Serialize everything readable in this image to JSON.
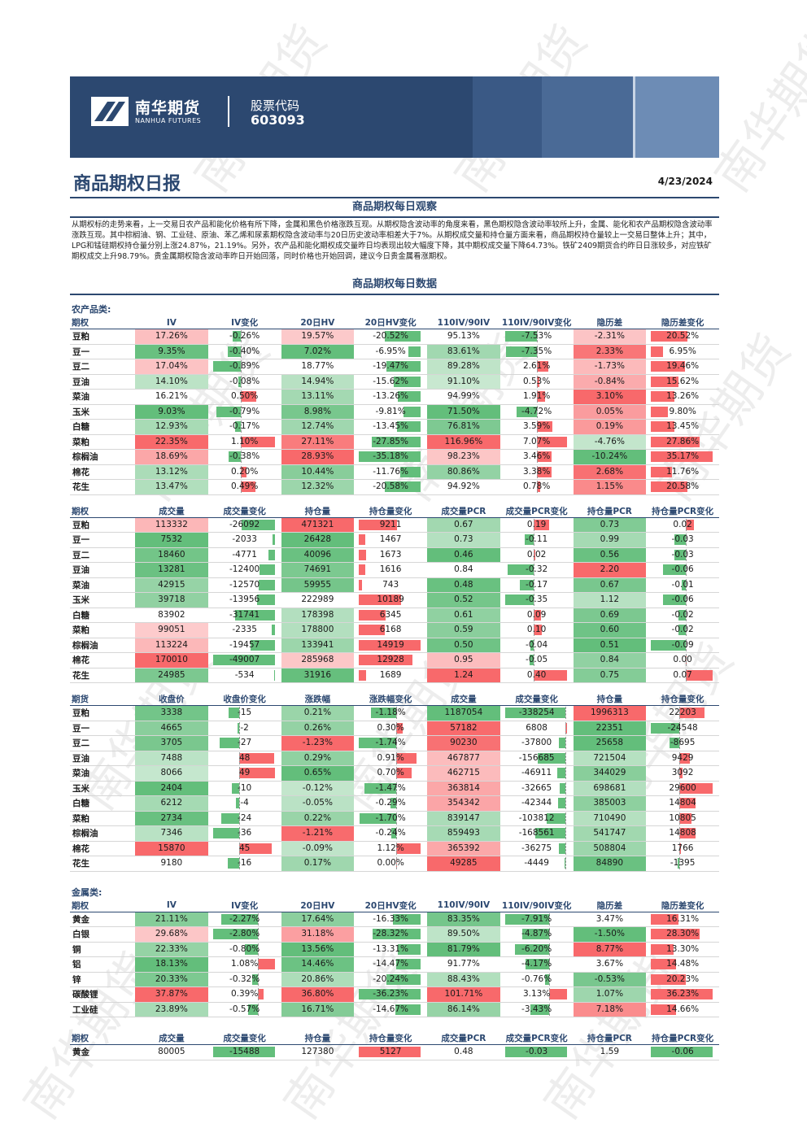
{
  "header": {
    "company_cn": "南华期货",
    "company_en": "NANHUA FUTURES",
    "stock_label": "股票代码",
    "stock_code": "603093",
    "report_title": "商品期权日报",
    "date": "4/23/2024",
    "watermark": "南华期货"
  },
  "observation": {
    "heading": "商品期权每日观察",
    "text": "从期权标的走势来看，上一交易日农产品和能化价格有所下降，金属和黑色价格涨跌互现。从期权隐含波动率的角度来看，黑色期权隐含波动率较所上升，金属、能化和农产品期权隐含波动率涨跌互现。其中棕榈油、钢、工业硅、原油、苯乙烯和尿素期权隐含波动率与20日历史波动率相差大于7%。从期权成交量和持仓量方面来看，商品期权持仓量较上一交易日整体上升；其中，LPG和锰硅期权持仓量分别上涨24.87%，21.19%。另外，农产品和能化期权成交量昨日均表现出较大幅度下降，其中期权成交量下降64.73%。铁矿2409期货合约昨日日涨较多，对应铁矿期权成交上升98.79%。贵金属期权隐含波动率昨日开始回落，同时价格也开始回调，建议今日贵金属看涨期权。"
  },
  "data_heading": "商品期权每日数据",
  "agri_label": "农产品类:",
  "metal_label": "金属类:",
  "iv_headers": [
    "期权",
    "IV",
    "IV变化",
    "20日HV",
    "20日HV变化",
    "110IV/90IV",
    "110IV/90IV变化",
    "隐历差",
    "隐历差变化"
  ],
  "vol_headers": [
    "期权",
    "成交量",
    "成交量变化",
    "持仓量",
    "持仓量变化",
    "成交量PCR",
    "成交量PCR变化",
    "持仓量PCR",
    "持仓量PCR变化"
  ],
  "fut_headers": [
    "期货",
    "收盘价",
    "收盘价变化",
    "涨跌幅",
    "涨跌幅变化",
    "成交量",
    "成交量变化",
    "持仓量",
    "持仓量变化"
  ],
  "agri_iv": [
    {
      "name": "豆粕",
      "iv": "17.26%",
      "iv_chg": "-0.26%",
      "hv": "19.57%",
      "hv_chg": "-20.52%",
      "ratio": "95.13%",
      "ratio_chg": "-7.53%",
      "spread": "-2.31%",
      "spread_chg": "20.52%"
    },
    {
      "name": "豆一",
      "iv": "9.35%",
      "iv_chg": "-0.40%",
      "hv": "7.02%",
      "hv_chg": "-6.95%",
      "ratio": "83.61%",
      "ratio_chg": "-7.35%",
      "spread": "2.33%",
      "spread_chg": "6.95%"
    },
    {
      "name": "豆二",
      "iv": "17.04%",
      "iv_chg": "-0.89%",
      "hv": "18.77%",
      "hv_chg": "-19.47%",
      "ratio": "89.28%",
      "ratio_chg": "2.61%",
      "spread": "-1.73%",
      "spread_chg": "19.46%"
    },
    {
      "name": "豆油",
      "iv": "14.10%",
      "iv_chg": "-0.08%",
      "hv": "14.94%",
      "hv_chg": "-15.62%",
      "ratio": "91.10%",
      "ratio_chg": "0.53%",
      "spread": "-0.84%",
      "spread_chg": "15.62%"
    },
    {
      "name": "菜油",
      "iv": "16.21%",
      "iv_chg": "0.50%",
      "hv": "13.11%",
      "hv_chg": "-13.26%",
      "ratio": "94.99%",
      "ratio_chg": "1.91%",
      "spread": "3.10%",
      "spread_chg": "13.26%"
    },
    {
      "name": "玉米",
      "iv": "9.03%",
      "iv_chg": "-0.79%",
      "hv": "8.98%",
      "hv_chg": "-9.81%",
      "ratio": "71.50%",
      "ratio_chg": "-4.72%",
      "spread": "0.05%",
      "spread_chg": "9.80%"
    },
    {
      "name": "白糖",
      "iv": "12.93%",
      "iv_chg": "-0.17%",
      "hv": "12.74%",
      "hv_chg": "-13.45%",
      "ratio": "76.81%",
      "ratio_chg": "3.59%",
      "spread": "0.19%",
      "spread_chg": "13.45%"
    },
    {
      "name": "菜粕",
      "iv": "22.35%",
      "iv_chg": "1.10%",
      "hv": "27.11%",
      "hv_chg": "-27.85%",
      "ratio": "116.96%",
      "ratio_chg": "7.07%",
      "spread": "-4.76%",
      "spread_chg": "27.86%"
    },
    {
      "name": "棕榈油",
      "iv": "18.69%",
      "iv_chg": "-0.38%",
      "hv": "28.93%",
      "hv_chg": "-35.18%",
      "ratio": "98.23%",
      "ratio_chg": "3.46%",
      "spread": "-10.24%",
      "spread_chg": "35.17%"
    },
    {
      "name": "棉花",
      "iv": "13.12%",
      "iv_chg": "0.20%",
      "hv": "10.44%",
      "hv_chg": "-11.76%",
      "ratio": "80.86%",
      "ratio_chg": "3.38%",
      "spread": "2.68%",
      "spread_chg": "11.76%"
    },
    {
      "name": "花生",
      "iv": "13.47%",
      "iv_chg": "0.49%",
      "hv": "12.32%",
      "hv_chg": "-20.58%",
      "ratio": "94.92%",
      "ratio_chg": "0.78%",
      "spread": "1.15%",
      "spread_chg": "20.58%"
    }
  ],
  "agri_vol": [
    {
      "name": "豆粕",
      "vol": "113332",
      "vol_chg": "-26092",
      "oi": "471321",
      "oi_chg": "9211",
      "vpcr": "0.67",
      "vpcr_chg": "0.19",
      "opcr": "0.73",
      "opcr_chg": "0.02"
    },
    {
      "name": "豆一",
      "vol": "7532",
      "vol_chg": "-2033",
      "oi": "26428",
      "oi_chg": "1467",
      "vpcr": "0.73",
      "vpcr_chg": "-0.11",
      "opcr": "0.99",
      "opcr_chg": "-0.03"
    },
    {
      "name": "豆二",
      "vol": "18460",
      "vol_chg": "-4771",
      "oi": "40096",
      "oi_chg": "1673",
      "vpcr": "0.46",
      "vpcr_chg": "0.02",
      "opcr": "0.56",
      "opcr_chg": "-0.03"
    },
    {
      "name": "豆油",
      "vol": "13281",
      "vol_chg": "-12400",
      "oi": "74691",
      "oi_chg": "1616",
      "vpcr": "0.84",
      "vpcr_chg": "-0.32",
      "opcr": "2.20",
      "opcr_chg": "-0.06"
    },
    {
      "name": "菜油",
      "vol": "42915",
      "vol_chg": "-12570",
      "oi": "59955",
      "oi_chg": "743",
      "vpcr": "0.48",
      "vpcr_chg": "-0.17",
      "opcr": "0.67",
      "opcr_chg": "-0.01"
    },
    {
      "name": "玉米",
      "vol": "39718",
      "vol_chg": "-13956",
      "oi": "222989",
      "oi_chg": "10189",
      "vpcr": "0.52",
      "vpcr_chg": "-0.35",
      "opcr": "1.12",
      "opcr_chg": "-0.06"
    },
    {
      "name": "白糖",
      "vol": "83902",
      "vol_chg": "-31741",
      "oi": "178398",
      "oi_chg": "6345",
      "vpcr": "0.61",
      "vpcr_chg": "0.09",
      "opcr": "0.69",
      "opcr_chg": "-0.02"
    },
    {
      "name": "菜粕",
      "vol": "99051",
      "vol_chg": "-2335",
      "oi": "178800",
      "oi_chg": "6168",
      "vpcr": "0.59",
      "vpcr_chg": "0.10",
      "opcr": "0.60",
      "opcr_chg": "-0.02"
    },
    {
      "name": "棕榈油",
      "vol": "113224",
      "vol_chg": "-19457",
      "oi": "133941",
      "oi_chg": "14919",
      "vpcr": "0.50",
      "vpcr_chg": "-0.04",
      "opcr": "0.51",
      "opcr_chg": "-0.09"
    },
    {
      "name": "棉花",
      "vol": "170010",
      "vol_chg": "-49007",
      "oi": "285968",
      "oi_chg": "12928",
      "vpcr": "0.95",
      "vpcr_chg": "-0.05",
      "opcr": "0.84",
      "opcr_chg": "0.00"
    },
    {
      "name": "花生",
      "vol": "24985",
      "vol_chg": "-534",
      "oi": "31916",
      "oi_chg": "1689",
      "vpcr": "1.24",
      "vpcr_chg": "0.40",
      "opcr": "0.75",
      "opcr_chg": "0.07"
    }
  ],
  "agri_fut": [
    {
      "name": "豆粕",
      "close": "3338",
      "close_chg": "-15",
      "pct": "0.21%",
      "pct_chg": "-1.18%",
      "vol": "1187054",
      "vol_chg": "-338254",
      "oi": "1996313",
      "oi_chg": "22203"
    },
    {
      "name": "豆一",
      "close": "4665",
      "close_chg": "-2",
      "pct": "0.26%",
      "pct_chg": "0.30%",
      "vol": "57182",
      "vol_chg": "6808",
      "oi": "22351",
      "oi_chg": "-24548"
    },
    {
      "name": "豆二",
      "close": "3705",
      "close_chg": "-27",
      "pct": "-1.23%",
      "pct_chg": "-1.74%",
      "vol": "90230",
      "vol_chg": "-37800",
      "oi": "25658",
      "oi_chg": "-8695"
    },
    {
      "name": "豆油",
      "close": "7488",
      "close_chg": "48",
      "pct": "0.29%",
      "pct_chg": "0.91%",
      "vol": "467877",
      "vol_chg": "-156685",
      "oi": "721504",
      "oi_chg": "9429"
    },
    {
      "name": "菜油",
      "close": "8066",
      "close_chg": "49",
      "pct": "0.65%",
      "pct_chg": "0.70%",
      "vol": "462715",
      "vol_chg": "-46911",
      "oi": "344029",
      "oi_chg": "3092"
    },
    {
      "name": "玉米",
      "close": "2404",
      "close_chg": "-10",
      "pct": "-0.12%",
      "pct_chg": "-1.47%",
      "vol": "363814",
      "vol_chg": "-32665",
      "oi": "698681",
      "oi_chg": "29600"
    },
    {
      "name": "白糖",
      "close": "6212",
      "close_chg": "-4",
      "pct": "-0.05%",
      "pct_chg": "-0.29%",
      "vol": "354342",
      "vol_chg": "-42344",
      "oi": "385003",
      "oi_chg": "14804"
    },
    {
      "name": "菜粕",
      "close": "2734",
      "close_chg": "-24",
      "pct": "0.22%",
      "pct_chg": "-1.70%",
      "vol": "839147",
      "vol_chg": "-103812",
      "oi": "710490",
      "oi_chg": "10805"
    },
    {
      "name": "棕榈油",
      "close": "7346",
      "close_chg": "-36",
      "pct": "-1.21%",
      "pct_chg": "-0.24%",
      "vol": "859493",
      "vol_chg": "-168561",
      "oi": "541747",
      "oi_chg": "14808"
    },
    {
      "name": "棉花",
      "close": "15870",
      "close_chg": "45",
      "pct": "-0.09%",
      "pct_chg": "1.12%",
      "vol": "365392",
      "vol_chg": "-36275",
      "oi": "508804",
      "oi_chg": "1766"
    },
    {
      "name": "花生",
      "close": "9180",
      "close_chg": "-16",
      "pct": "0.17%",
      "pct_chg": "0.00%",
      "vol": "49285",
      "vol_chg": "-4449",
      "oi": "84890",
      "oi_chg": "-1395"
    }
  ],
  "metal_iv": [
    {
      "name": "黄金",
      "iv": "21.11%",
      "iv_chg": "-2.27%",
      "hv": "17.64%",
      "hv_chg": "-16.33%",
      "ratio": "83.35%",
      "ratio_chg": "-7.91%",
      "spread": "3.47%",
      "spread_chg": "16.31%"
    },
    {
      "name": "白银",
      "iv": "29.68%",
      "iv_chg": "-2.80%",
      "hv": "31.18%",
      "hv_chg": "-28.32%",
      "ratio": "89.50%",
      "ratio_chg": "-4.87%",
      "spread": "-1.50%",
      "spread_chg": "28.30%"
    },
    {
      "name": "铜",
      "iv": "22.33%",
      "iv_chg": "-0.80%",
      "hv": "13.56%",
      "hv_chg": "-13.31%",
      "ratio": "81.79%",
      "ratio_chg": "-6.20%",
      "spread": "8.77%",
      "spread_chg": "13.30%"
    },
    {
      "name": "铝",
      "iv": "18.13%",
      "iv_chg": "1.08%",
      "hv": "14.46%",
      "hv_chg": "-14.47%",
      "ratio": "91.77%",
      "ratio_chg": "-4.17%",
      "spread": "3.67%",
      "spread_chg": "14.48%"
    },
    {
      "name": "锌",
      "iv": "20.33%",
      "iv_chg": "-0.32%",
      "hv": "20.86%",
      "hv_chg": "-20.24%",
      "ratio": "88.43%",
      "ratio_chg": "-0.76%",
      "spread": "-0.53%",
      "spread_chg": "20.23%"
    },
    {
      "name": "碳酸锂",
      "iv": "37.87%",
      "iv_chg": "0.39%",
      "hv": "36.80%",
      "hv_chg": "-36.23%",
      "ratio": "101.71%",
      "ratio_chg": "3.13%",
      "spread": "1.07%",
      "spread_chg": "36.23%"
    },
    {
      "name": "工业硅",
      "iv": "23.89%",
      "iv_chg": "-0.57%",
      "hv": "16.71%",
      "hv_chg": "-14.67%",
      "ratio": "86.14%",
      "ratio_chg": "-3.43%",
      "spread": "7.18%",
      "spread_chg": "14.66%"
    }
  ],
  "metal_vol": [
    {
      "name": "黄金",
      "vol": "80005",
      "vol_chg": "-15488",
      "oi": "127380",
      "oi_chg": "5127",
      "vpcr": "0.48",
      "vpcr_chg": "-0.03",
      "opcr": "1.59",
      "opcr_chg": "-0.06"
    }
  ],
  "colors": {
    "navy": "#2c4870",
    "green": "#63be7b",
    "red": "#f8696b",
    "grid": "#d6d6d6"
  }
}
